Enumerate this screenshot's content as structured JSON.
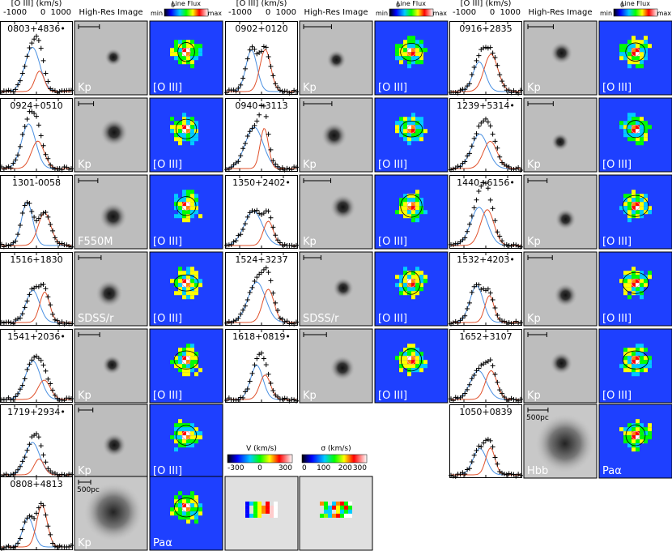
{
  "header": [
    {
      "spectrum_axis": "[O III] (km/s)",
      "ticks": [
        "-1000",
        "0",
        "1000"
      ],
      "image": "High-Res Image",
      "colorbar": {
        "title": "Line Flux",
        "min": "min",
        "zero": "0",
        "max": "max"
      }
    },
    {
      "spectrum_axis": "[O III] (km/s)",
      "ticks": [
        "-1000",
        "0",
        "1000"
      ],
      "image": "High-Res Image",
      "colorbar": {
        "title": "Line Flux",
        "min": "min",
        "zero": "0",
        "max": "max"
      }
    },
    {
      "spectrum_axis": "[O III] (km/s)",
      "ticks": [
        "-1000",
        "0",
        "1000"
      ],
      "image": "High-Res Image",
      "colorbar": {
        "title": "Line Flux",
        "min": "min",
        "zero": "0",
        "max": "max"
      }
    }
  ],
  "rows": [
    [
      {
        "name": "0803+4836•",
        "image": "Kp",
        "map": "[O III]"
      },
      {
        "name": "0902+0120",
        "image": "Kp",
        "map": "[O III]"
      },
      {
        "name": "0916+2835",
        "image": "Kp",
        "map": "[O III]"
      }
    ],
    [
      {
        "name": "0924+0510",
        "image": "Kp",
        "map": "[O III]"
      },
      {
        "name": "0940+3113",
        "image": "Kp",
        "map": "[O III]"
      },
      {
        "name": "1239+5314•",
        "image": "Kp",
        "map": "[O III]"
      }
    ],
    [
      {
        "name": "1301-0058",
        "image": "F550M",
        "map": "[O III]"
      },
      {
        "name": "1350+2402•",
        "image": "Kp",
        "map": "[O III]"
      },
      {
        "name": "1440+6156•",
        "image": "Kp",
        "map": "[O III]"
      }
    ],
    [
      {
        "name": "1516+1830",
        "image": "SDSS/r",
        "map": "[O III]"
      },
      {
        "name": "1524+3237",
        "image": "SDSS/r",
        "map": "[O III]"
      },
      {
        "name": "1532+4203•",
        "image": "Kp",
        "map": "[O III]"
      }
    ],
    [
      {
        "name": "1541+2036•",
        "image": "Kp",
        "map": "[O III]"
      },
      {
        "name": "1618+0819•",
        "image": "Kp",
        "map": "[O III]"
      },
      {
        "name": "1652+3107",
        "image": "Kp",
        "map": "[O III]"
      }
    ],
    [
      {
        "name": "1719+2934•",
        "image": "Kp",
        "map": "[O III]"
      },
      null,
      {
        "name": "1050+0839",
        "image": "Hbb",
        "map": "Paα",
        "scale": "500pc"
      }
    ],
    [
      {
        "name": "0808+4813",
        "image": "Kp",
        "map": "Paα",
        "scale": "500pc"
      },
      null,
      null
    ]
  ],
  "kinematics": [
    {
      "label": "V (km/s)",
      "ticks": [
        "-300",
        "0",
        "300"
      ]
    },
    {
      "label": "σ (km/s)",
      "ticks": [
        "0",
        "100",
        "200",
        "300"
      ]
    }
  ]
}
